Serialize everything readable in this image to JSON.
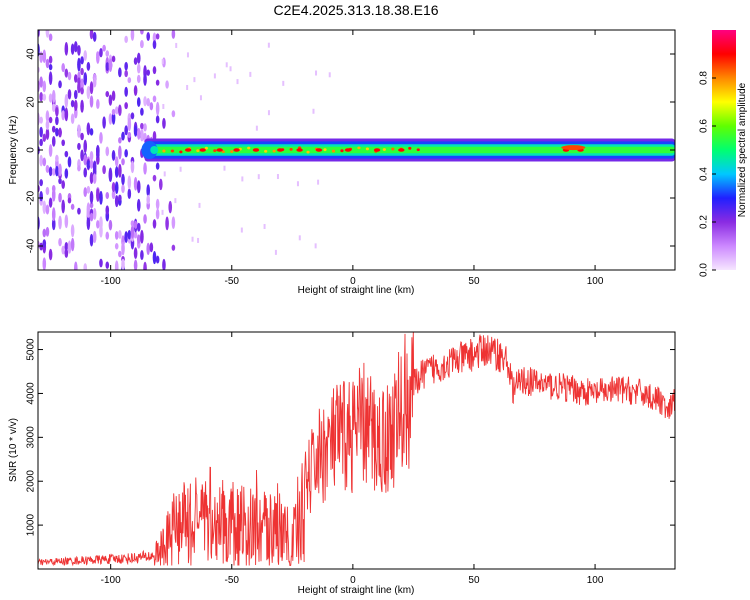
{
  "figure": {
    "title": "C2E4.2025.313.18.38.E16"
  },
  "chart_data": [
    {
      "type": "heatmap",
      "xlabel": "Height of straight line (km)",
      "ylabel": "Frequency (Hz)",
      "xlim": [
        -130,
        133
      ],
      "ylim": [
        -50,
        50
      ],
      "x_ticks": [
        -100,
        -50,
        0,
        50,
        100
      ],
      "y_ticks": [
        40,
        20,
        0,
        -20,
        -40
      ],
      "x_tick_labels": [
        "-100",
        "-50",
        "0",
        "50",
        "100"
      ],
      "y_tick_labels": [
        "40",
        "20",
        "0",
        "-20",
        "-40"
      ],
      "noise_region_x": [
        -130,
        -80
      ],
      "band_center_hz": 0,
      "band_halfwidth_hz": 3,
      "hot_spots_x": [
        -68,
        -62,
        -55,
        -48,
        -40,
        -30,
        -22,
        -14,
        -2,
        10,
        20,
        88,
        94
      ]
    },
    {
      "type": "colorbar",
      "label": "Normalized spectral amplitude",
      "range": [
        0,
        1
      ],
      "ticks": [
        0.0,
        0.2,
        0.4,
        0.6,
        0.8
      ],
      "tick_labels": [
        "0.0",
        "0.2",
        "0.4",
        "0.6",
        "0.8"
      ],
      "colors": [
        "#f6e6ff",
        "#cc88ff",
        "#8a2be2",
        "#2020ff",
        "#00c8ff",
        "#00ff70",
        "#60ff00",
        "#ffff00",
        "#ff8800",
        "#ff0000",
        "#ff0080"
      ]
    },
    {
      "type": "line",
      "xlabel": "Height of straight line (km)",
      "ylabel": "SNR (10 * v/v)",
      "xlim": [
        -130,
        133
      ],
      "ylim": [
        0,
        5400
      ],
      "x_ticks": [
        -100,
        -50,
        0,
        50,
        100
      ],
      "y_ticks": [
        1000,
        2000,
        3000,
        4000,
        5000
      ],
      "x_tick_labels": [
        "-100",
        "-50",
        "0",
        "50",
        "100"
      ],
      "y_tick_labels": [
        "1000",
        "2000",
        "3000",
        "4000",
        "5000"
      ],
      "line_color": "#ee3333",
      "series": [
        {
          "name": "SNR",
          "x": [
            -130,
            -110,
            -90,
            -82,
            -78,
            -74,
            -70,
            -60,
            -50,
            -40,
            -30,
            -24,
            -20,
            -15,
            -10,
            -5,
            0,
            5,
            10,
            15,
            20,
            25,
            30,
            40,
            50,
            55,
            60,
            64,
            66,
            70,
            80,
            90,
            100,
            110,
            120,
            128,
            130,
            133
          ],
          "y": [
            150,
            200,
            250,
            300,
            500,
            900,
            1000,
            1000,
            1000,
            900,
            900,
            800,
            1800,
            2500,
            2800,
            3000,
            3100,
            3300,
            2900,
            3000,
            3600,
            4200,
            4500,
            4700,
            4900,
            5000,
            4900,
            4700,
            4100,
            4300,
            4200,
            4100,
            4000,
            4100,
            4000,
            3800,
            3500,
            3900
          ]
        }
      ]
    }
  ]
}
